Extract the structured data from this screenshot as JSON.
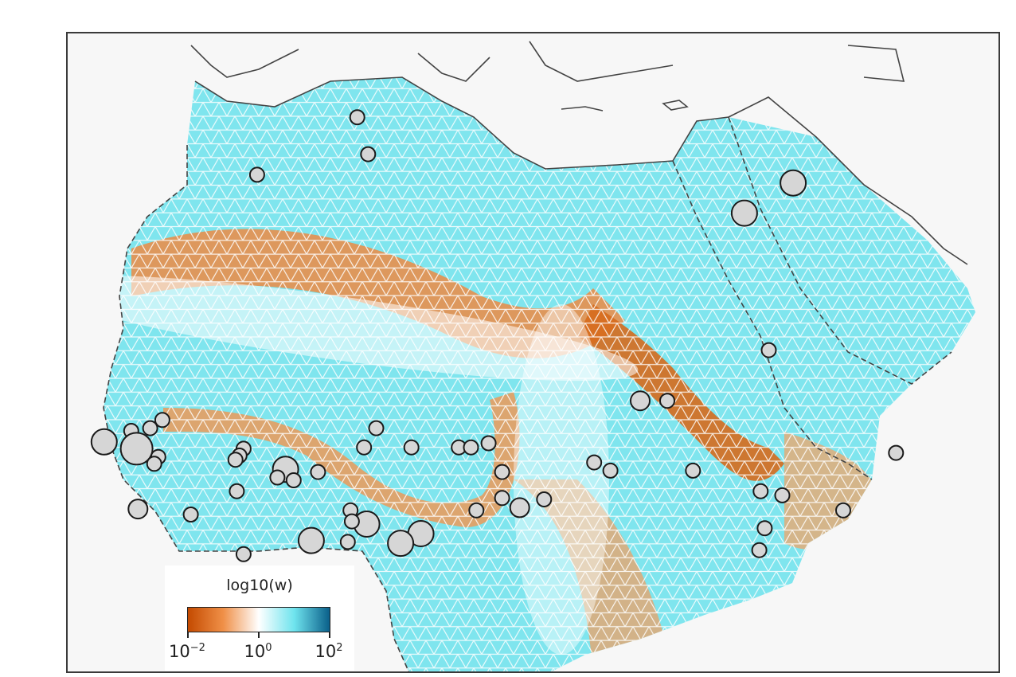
{
  "legend": {
    "title": "log10(w)",
    "ticks": [
      {
        "base": "10",
        "exp": "−2"
      },
      {
        "base": "10",
        "exp": "0"
      },
      {
        "base": "10",
        "exp": "2"
      }
    ],
    "colormap": [
      "#c44a00",
      "#f09048",
      "#ffffff",
      "#6fe4ee",
      "#0a5f8a"
    ]
  },
  "colors": {
    "grid_low": "#e07a2a",
    "grid_high": "#5fd8e8",
    "sample_fill": "#d6d6d6",
    "sample_stroke": "#1a1a1a",
    "coastline": "#444444"
  },
  "samples": [
    {
      "lat": 36.7,
      "lon": 3.1,
      "size": "small"
    },
    {
      "lat": 34.0,
      "lon": 3.9,
      "size": "small"
    },
    {
      "lat": 32.5,
      "lon": -4.3,
      "size": "small"
    },
    {
      "lat": 31.9,
      "lon": 35.3,
      "size": "large"
    },
    {
      "lat": 29.7,
      "lon": 31.7,
      "size": "large"
    },
    {
      "lat": 19.7,
      "lon": 33.5,
      "size": "small"
    },
    {
      "lat": 16.0,
      "lon": 24.0,
      "size": "medium"
    },
    {
      "lat": 16.0,
      "lon": 26.0,
      "size": "small"
    },
    {
      "lat": 14.6,
      "lon": -11.3,
      "size": "small"
    },
    {
      "lat": 14.0,
      "lon": -12.2,
      "size": "small"
    },
    {
      "lat": 13.8,
      "lon": -13.6,
      "size": "small"
    },
    {
      "lat": 14.0,
      "lon": 4.5,
      "size": "small"
    },
    {
      "lat": 13.0,
      "lon": -15.6,
      "size": "large"
    },
    {
      "lat": 12.5,
      "lon": -13.2,
      "size": "xlarge"
    },
    {
      "lat": 11.9,
      "lon": -11.6,
      "size": "small"
    },
    {
      "lat": 11.4,
      "lon": -11.9,
      "size": "small"
    },
    {
      "lat": 12.5,
      "lon": -5.3,
      "size": "small"
    },
    {
      "lat": 12.0,
      "lon": -5.6,
      "size": "small"
    },
    {
      "lat": 11.7,
      "lon": -5.9,
      "size": "small"
    },
    {
      "lat": 12.6,
      "lon": 3.6,
      "size": "small"
    },
    {
      "lat": 12.6,
      "lon": 7.1,
      "size": "small"
    },
    {
      "lat": 12.6,
      "lon": 10.6,
      "size": "small"
    },
    {
      "lat": 12.6,
      "lon": 11.5,
      "size": "small"
    },
    {
      "lat": 12.9,
      "lon": 12.8,
      "size": "small"
    },
    {
      "lat": 11.5,
      "lon": 20.6,
      "size": "small"
    },
    {
      "lat": 10.9,
      "lon": 21.8,
      "size": "small"
    },
    {
      "lat": 10.9,
      "lon": 27.9,
      "size": "small"
    },
    {
      "lat": 12.2,
      "lon": 42.9,
      "size": "small"
    },
    {
      "lat": 11.0,
      "lon": -2.2,
      "size": "large"
    },
    {
      "lat": 10.4,
      "lon": -2.8,
      "size": "small"
    },
    {
      "lat": 10.2,
      "lon": -1.6,
      "size": "small"
    },
    {
      "lat": 10.8,
      "lon": 0.2,
      "size": "small"
    },
    {
      "lat": 10.8,
      "lon": 13.8,
      "size": "small"
    },
    {
      "lat": 9.4,
      "lon": -5.8,
      "size": "small"
    },
    {
      "lat": 8.9,
      "lon": 13.8,
      "size": "small"
    },
    {
      "lat": 8.8,
      "lon": 16.9,
      "size": "small"
    },
    {
      "lat": 8.2,
      "lon": 15.1,
      "size": "medium"
    },
    {
      "lat": 8.0,
      "lon": 11.9,
      "size": "small"
    },
    {
      "lat": 9.4,
      "lon": 32.9,
      "size": "small"
    },
    {
      "lat": 9.1,
      "lon": 34.5,
      "size": "small"
    },
    {
      "lat": 8.0,
      "lon": 39.0,
      "size": "small"
    },
    {
      "lat": 8.1,
      "lon": -13.1,
      "size": "medium"
    },
    {
      "lat": 7.7,
      "lon": -9.2,
      "size": "small"
    },
    {
      "lat": 8.0,
      "lon": 2.6,
      "size": "small"
    },
    {
      "lat": 7.0,
      "lon": 3.8,
      "size": "large"
    },
    {
      "lat": 7.2,
      "lon": 2.7,
      "size": "small"
    },
    {
      "lat": 6.3,
      "lon": 7.8,
      "size": "large"
    },
    {
      "lat": 6.7,
      "lon": 33.2,
      "size": "small"
    },
    {
      "lat": 5.8,
      "lon": -0.3,
      "size": "large"
    },
    {
      "lat": 5.7,
      "lon": 2.4,
      "size": "small"
    },
    {
      "lat": 5.6,
      "lon": 6.3,
      "size": "large"
    },
    {
      "lat": 5.1,
      "lon": 32.8,
      "size": "small"
    },
    {
      "lat": 4.8,
      "lon": -5.3,
      "size": "small"
    }
  ]
}
